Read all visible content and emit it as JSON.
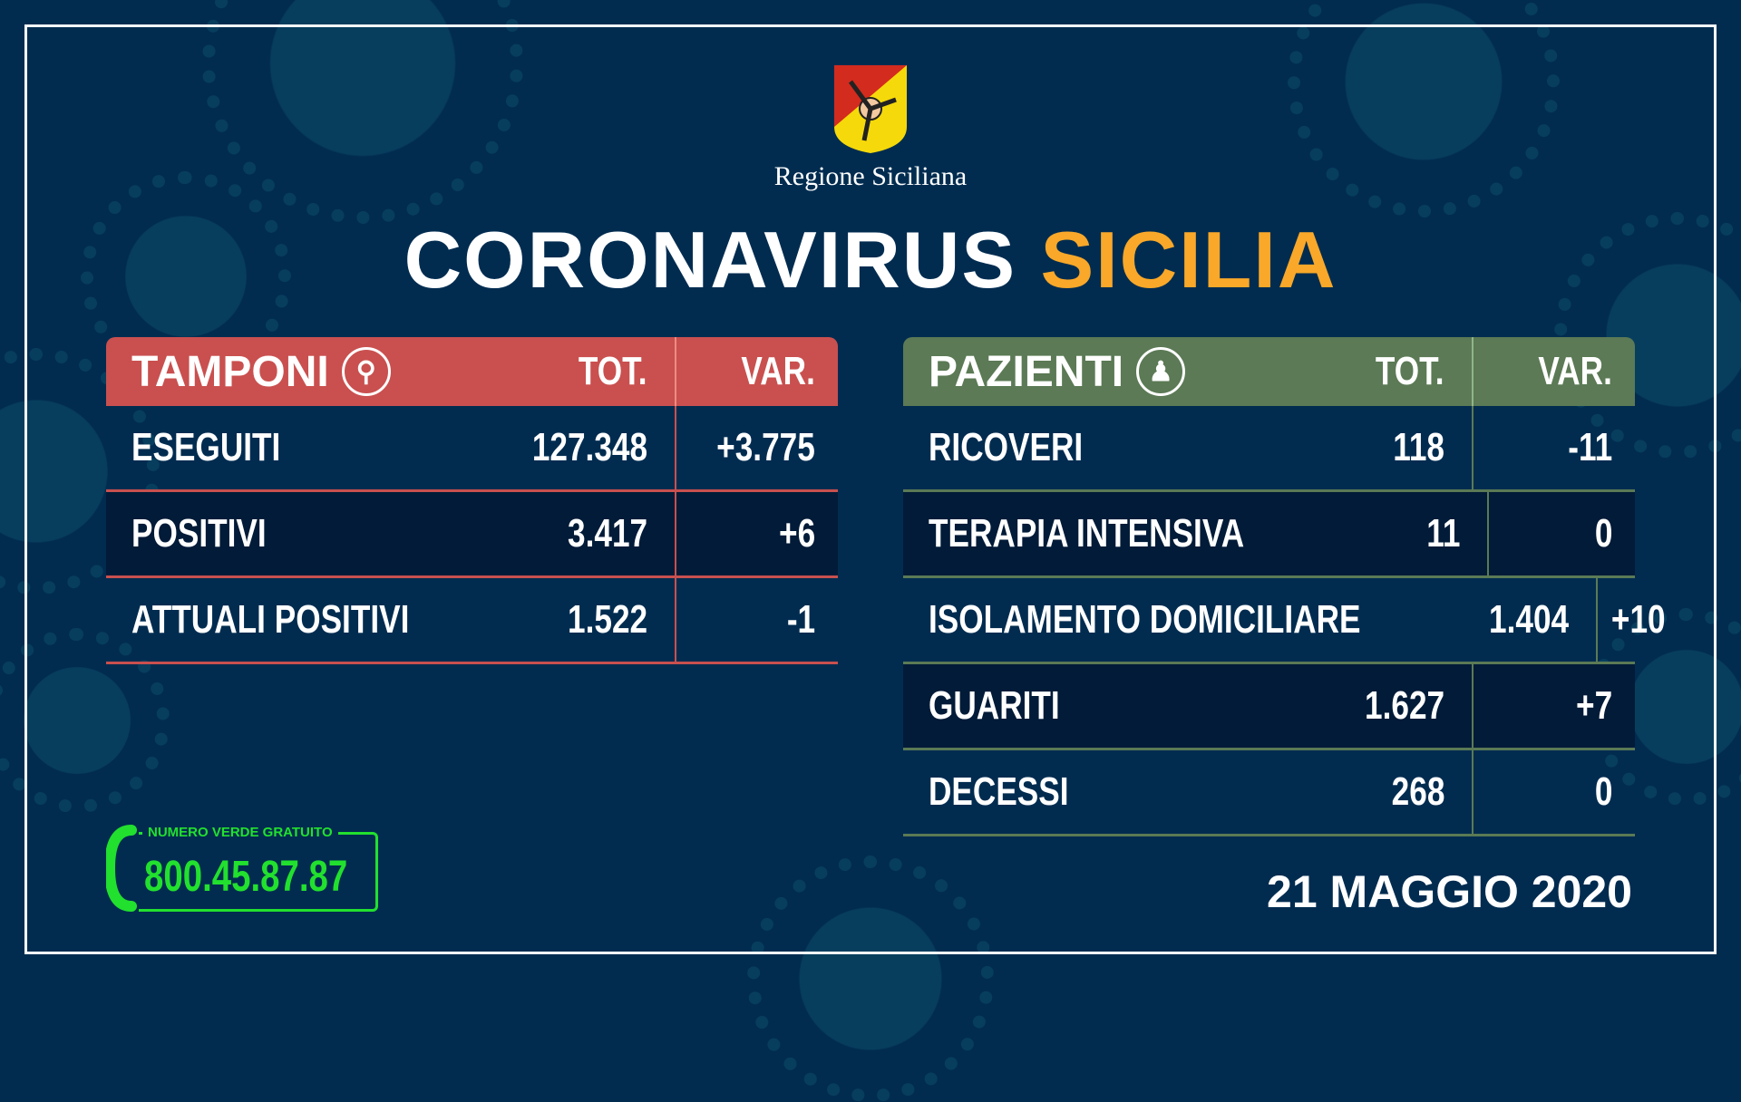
{
  "header": {
    "region": "Regione Siciliana",
    "title_white": "CORONAVIRUS",
    "title_yellow": "SICILIA"
  },
  "colors": {
    "background": "#012c50",
    "tamponi_header": "#c9504f",
    "pazienti_header": "#5b7a55",
    "accent": "#f9a829",
    "phone_green": "#22e02e"
  },
  "tamponi": {
    "title": "TAMPONI",
    "icon": "swab-icon",
    "tot": "TOT.",
    "var": "VAR.",
    "rows": [
      {
        "label": "ESEGUITI",
        "tot": "127.348",
        "var": "+3.775"
      },
      {
        "label": "POSITIVI",
        "tot": "3.417",
        "var": "+6"
      },
      {
        "label": "ATTUALI POSITIVI",
        "tot": "1.522",
        "var": "-1"
      }
    ]
  },
  "pazienti": {
    "title": "PAZIENTI",
    "icon": "person-icon",
    "tot": "TOT.",
    "var": "VAR.",
    "rows": [
      {
        "label": "RICOVERI",
        "tot": "118",
        "var": "-11"
      },
      {
        "label": "TERAPIA INTENSIVA",
        "tot": "11",
        "var": "0"
      },
      {
        "label": "ISOLAMENTO DOMICILIARE",
        "tot": "1.404",
        "var": "+10"
      },
      {
        "label": "GUARITI",
        "tot": "1.627",
        "var": "+7"
      },
      {
        "label": "DECESSI",
        "tot": "268",
        "var": "0"
      }
    ]
  },
  "phone": {
    "label": "NUMERO VERDE GRATUITO",
    "number": "800.45.87.87"
  },
  "date": "21 MAGGIO 2020"
}
